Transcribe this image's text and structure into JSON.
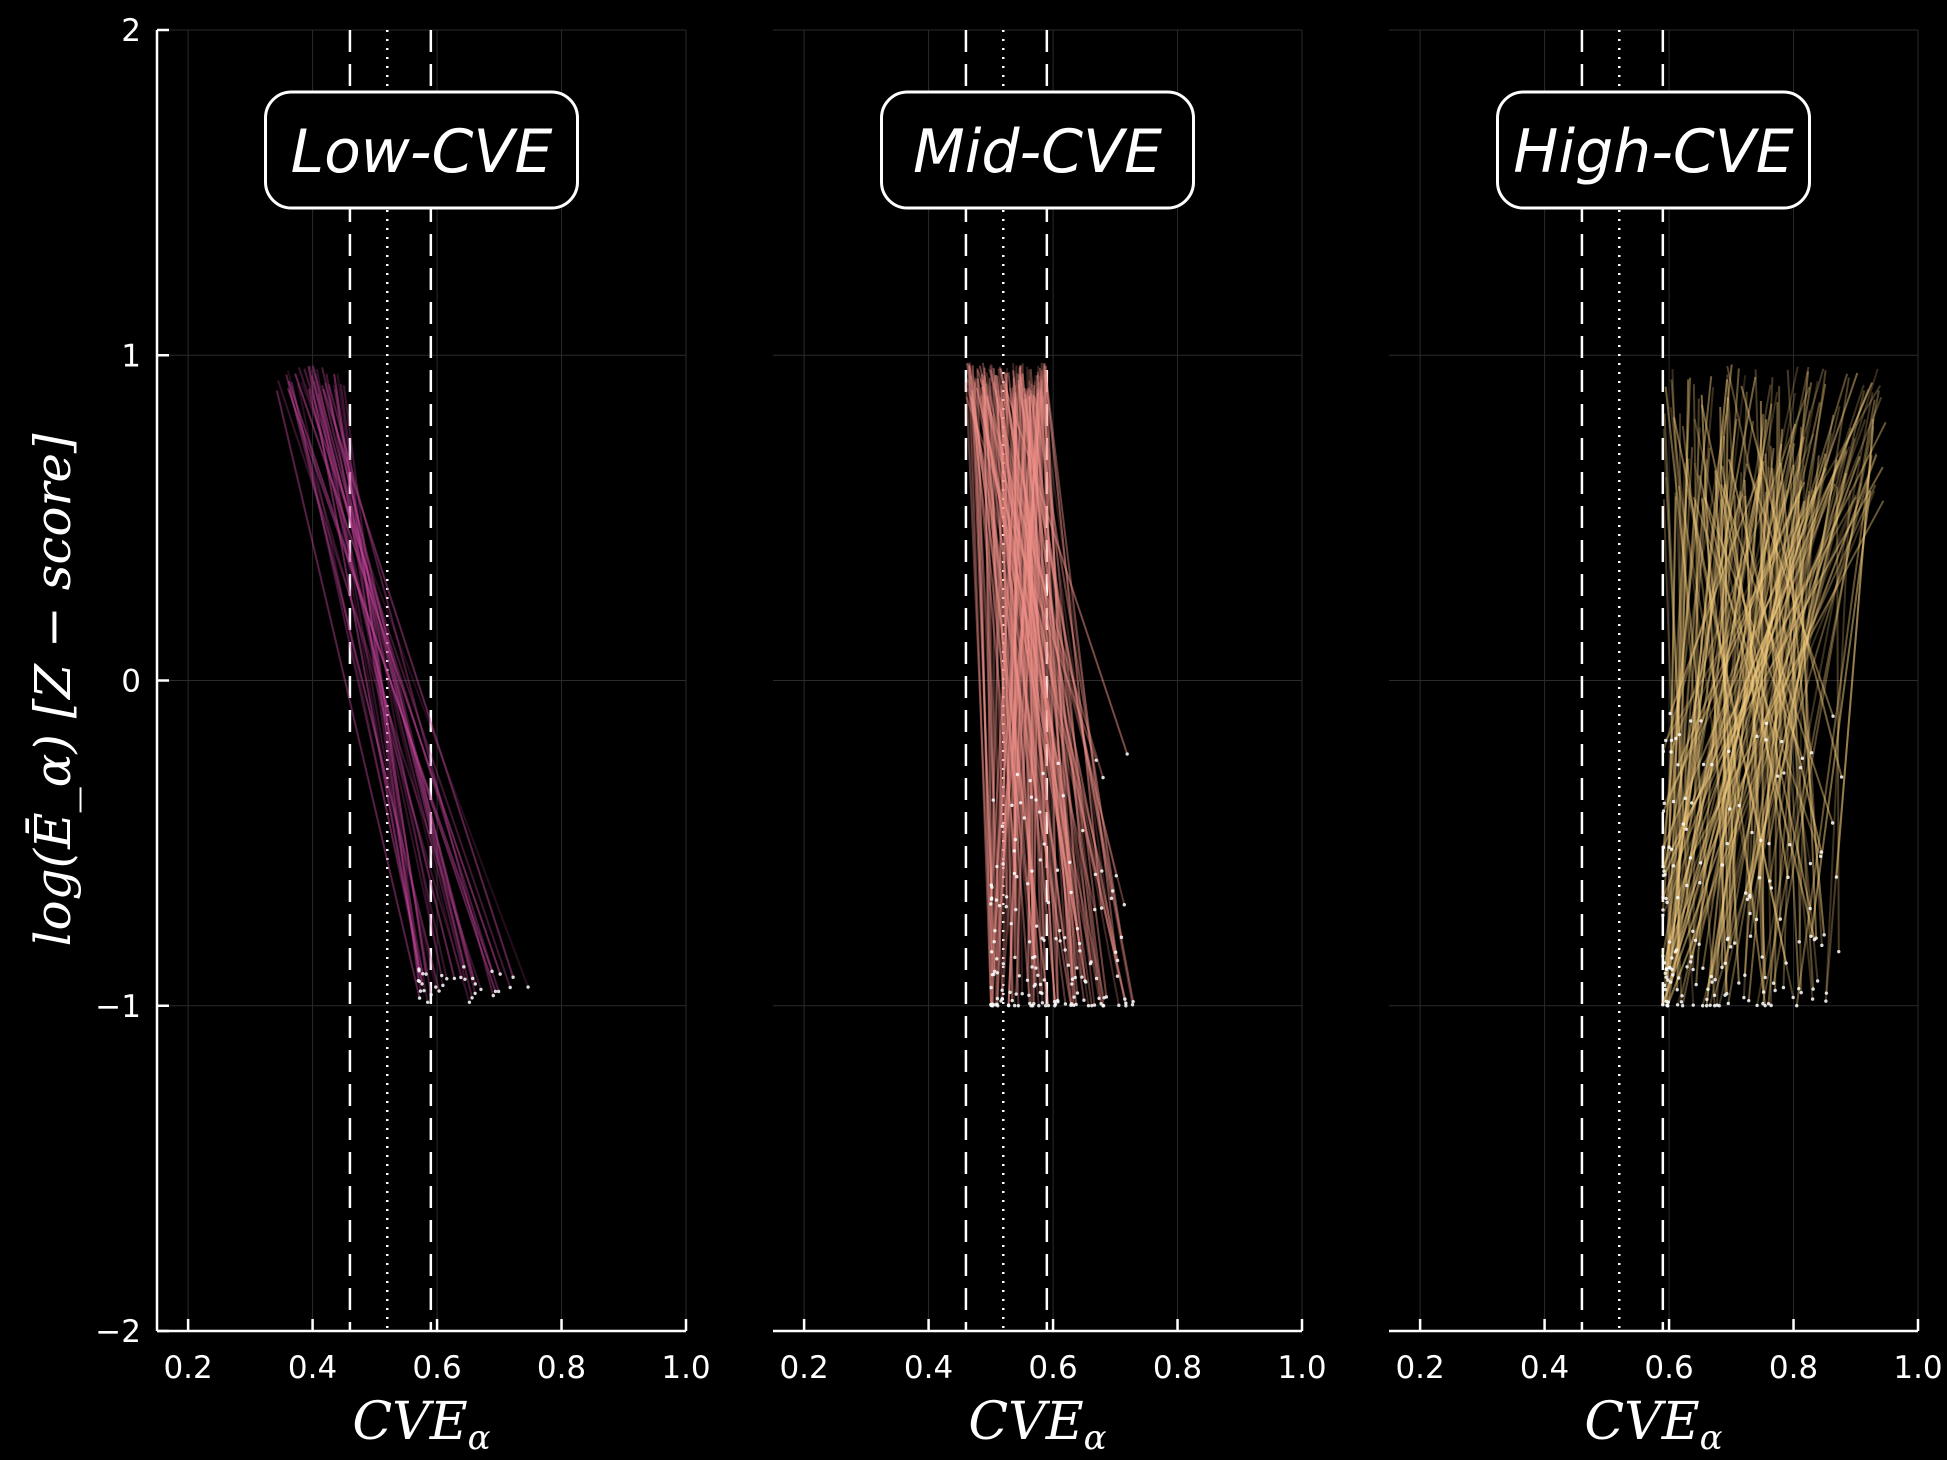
{
  "chart_data": [
    {
      "type": "line",
      "title": "Low-CVE",
      "xlabel": "CVE",
      "xlabel_subscript": "α",
      "ylabel": "log(Ē_α)  [Z − score]",
      "xlim": [
        0.15,
        1.0
      ],
      "ylim": [
        -2,
        2
      ],
      "xticks": [
        "0.2",
        "0.4",
        "0.6",
        "0.8",
        "1.0"
      ],
      "yticks": [
        "−2",
        "−1",
        "0",
        "1",
        "2"
      ],
      "grid": true,
      "vlines_dashed": [
        0.46,
        0.59
      ],
      "vline_dotted": 0.52,
      "color": "#c2449b",
      "trajectories": {
        "count": 35,
        "start_x_range": [
          0.33,
          0.46
        ],
        "start_y_range": [
          0.88,
          0.97
        ],
        "end_x_range": [
          0.57,
          0.77
        ],
        "end_y_range": [
          -0.99,
          -0.88
        ]
      }
    },
    {
      "type": "line",
      "title": "Mid-CVE",
      "xlabel": "CVE",
      "xlabel_subscript": "α",
      "xlim": [
        0.15,
        1.0
      ],
      "ylim": [
        -2,
        2
      ],
      "xticks": [
        "0.2",
        "0.4",
        "0.6",
        "0.8",
        "1.0"
      ],
      "grid": true,
      "vlines_dashed": [
        0.46,
        0.59
      ],
      "vline_dotted": 0.52,
      "color": "#f2918a",
      "trajectories": {
        "count": 160,
        "start_x_range": [
          0.46,
          0.59
        ],
        "start_y_range": [
          0.86,
          0.98
        ],
        "end_x_range": [
          0.5,
          0.73
        ],
        "end_y_range": [
          -1.0,
          -0.2
        ]
      }
    },
    {
      "type": "line",
      "title": "High-CVE",
      "xlabel": "CVE",
      "xlabel_subscript": "α",
      "xlim": [
        0.15,
        1.0
      ],
      "ylim": [
        -2,
        2
      ],
      "xticks": [
        "0.2",
        "0.4",
        "0.6",
        "0.8",
        "1.0"
      ],
      "grid": true,
      "vlines_dashed": [
        0.46,
        0.59
      ],
      "vline_dotted": 0.52,
      "color": "#f5cd7e",
      "trajectories": {
        "count": 170,
        "start_x_range": [
          0.59,
          0.95
        ],
        "start_y_range": [
          0.55,
          0.98
        ],
        "end_x_range": [
          0.59,
          0.88
        ],
        "end_y_range": [
          -1.0,
          -0.1
        ]
      }
    }
  ]
}
